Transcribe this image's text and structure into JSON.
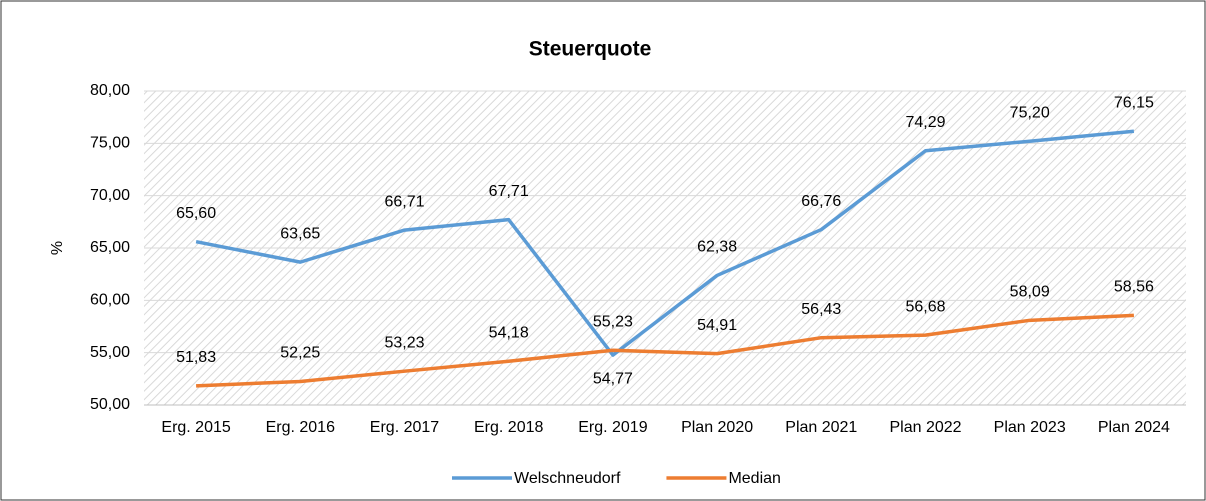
{
  "chart_data": {
    "type": "line",
    "title": "Steuerquote",
    "ylabel": "%",
    "categories": [
      "Erg. 2015",
      "Erg. 2016",
      "Erg. 2017",
      "Erg. 2018",
      "Erg. 2019",
      "Plan 2020",
      "Plan 2021",
      "Plan 2022",
      "Plan 2023",
      "Plan 2024"
    ],
    "series": [
      {
        "name": "Welschneudorf",
        "color": "#5b9bd5",
        "values": [
          65.6,
          63.65,
          66.71,
          67.71,
          54.77,
          62.38,
          66.76,
          74.29,
          75.2,
          76.15
        ],
        "value_labels": [
          "65,60",
          "63,65",
          "66,71",
          "67,71",
          "54,77",
          "62,38",
          "66,76",
          "74,29",
          "75,20",
          "76,15"
        ]
      },
      {
        "name": "Median",
        "color": "#ed7d31",
        "values": [
          51.83,
          52.25,
          53.23,
          54.18,
          55.23,
          54.91,
          56.43,
          56.68,
          58.09,
          58.56
        ],
        "value_labels": [
          "51,83",
          "52,25",
          "53,23",
          "54,18",
          "55,23",
          "54,91",
          "56,43",
          "56,68",
          "58,09",
          "58,56"
        ]
      }
    ],
    "ylim": [
      50,
      80
    ],
    "yticks": [
      {
        "value": 50,
        "label": "50,00"
      },
      {
        "value": 55,
        "label": "55,00"
      },
      {
        "value": 60,
        "label": "60,00"
      },
      {
        "value": 65,
        "label": "65,00"
      },
      {
        "value": 70,
        "label": "70,00"
      },
      {
        "value": 75,
        "label": "75,00"
      },
      {
        "value": 80,
        "label": "80,00"
      }
    ],
    "grid": true,
    "legend": "bottom"
  }
}
